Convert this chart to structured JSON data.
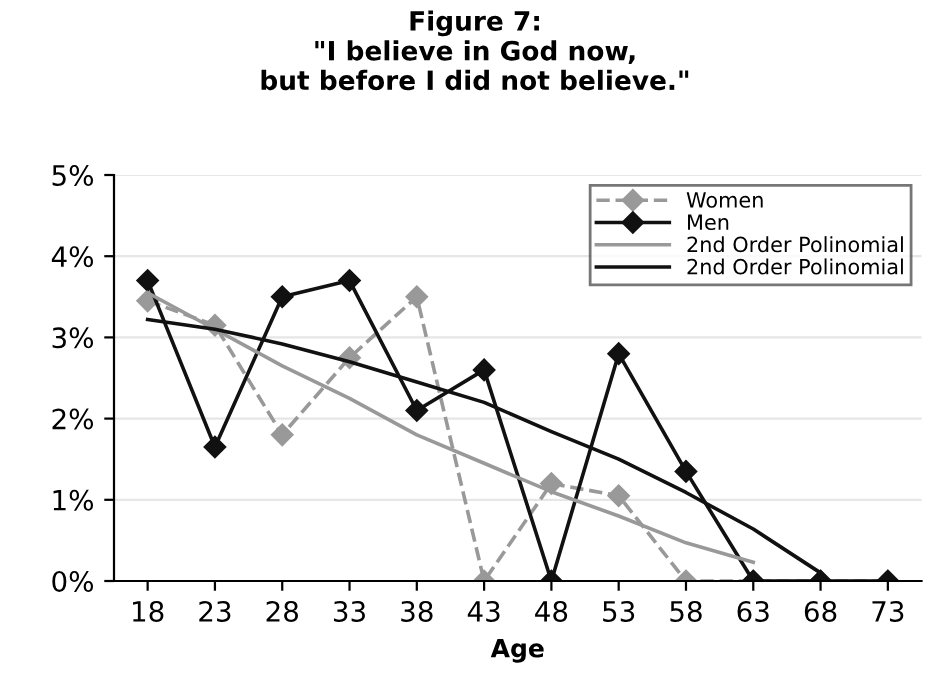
{
  "chart_data": {
    "type": "line",
    "title": "Figure 7:\n\"I believe in God now,\nbut before I did not believe.\"",
    "xlabel": "Age",
    "categories": [
      "18",
      "23",
      "28",
      "33",
      "38",
      "43",
      "48",
      "53",
      "58",
      "63",
      "68",
      "73"
    ],
    "series": [
      {
        "name": "Women",
        "color": "#999999",
        "line_style": "dashed",
        "marker": "diamond",
        "values": [
          3.45,
          3.15,
          1.8,
          2.75,
          3.5,
          0,
          1.2,
          1.05,
          0,
          0,
          0,
          0
        ]
      },
      {
        "name": "Men",
        "color": "#111111",
        "line_style": "solid",
        "marker": "diamond",
        "values": [
          3.7,
          1.65,
          3.5,
          3.7,
          2.1,
          2.6,
          0,
          2.8,
          1.35,
          0,
          0,
          0
        ]
      },
      {
        "name": "2nd Order Polinomial",
        "color": "#999999",
        "line_style": "solid",
        "marker": "none",
        "values": [
          3.55,
          3.1,
          2.65,
          2.25,
          1.8,
          1.45,
          1.1,
          0.8,
          0.47,
          0.23,
          null,
          null
        ]
      },
      {
        "name": "2nd Order Polinomial",
        "color": "#111111",
        "line_style": "solid",
        "marker": "none",
        "values": [
          3.22,
          3.1,
          2.92,
          2.7,
          2.45,
          2.2,
          1.84,
          1.5,
          1.09,
          0.64,
          0.1,
          null
        ]
      }
    ],
    "ylim": [
      0,
      5
    ],
    "yticks": [
      {
        "value": 0,
        "label": "0%"
      },
      {
        "value": 1,
        "label": "1%"
      },
      {
        "value": 2,
        "label": "2%"
      },
      {
        "value": 3,
        "label": "3%"
      },
      {
        "value": 4,
        "label": "4%"
      },
      {
        "value": 5,
        "label": "5%"
      }
    ],
    "grid": "y",
    "legend": "top right"
  }
}
